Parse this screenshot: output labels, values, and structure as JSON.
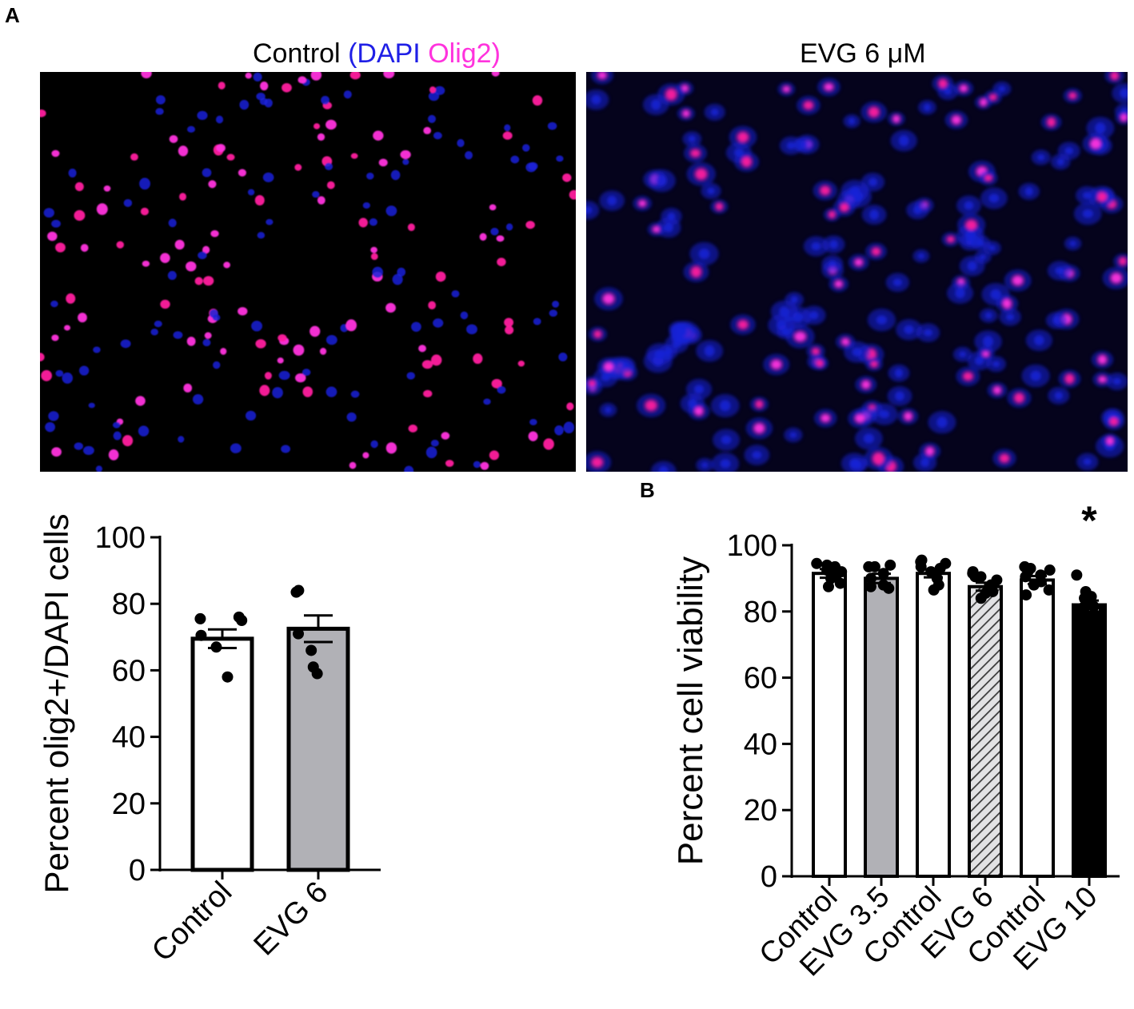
{
  "panels": {
    "a_label": "A",
    "b_label": "B"
  },
  "micrographs": {
    "left_title_prefix": "Control",
    "left_title_dapi": "(DAPI",
    "left_title_olig2": "Olig2)",
    "right_title": "EVG 6 μM",
    "colors": {
      "dapi": "#1f1fe6",
      "olig2": "#ff33dd",
      "nucleus_pink": "#ff1f9e",
      "nucleus_blue": "#1a22d8"
    }
  },
  "chart_data": [
    {
      "type": "bar",
      "panel": "A",
      "categories": [
        "Control",
        "EVG 6"
      ],
      "values": [
        69.5,
        72.5
      ],
      "sem": [
        2.8,
        4.0
      ],
      "points": [
        [
          75.5,
          75,
          76,
          70.5,
          67,
          58
        ],
        [
          83.5,
          84,
          71,
          66,
          61,
          59
        ]
      ],
      "fill": [
        "#ffffff",
        "#b1b1b6"
      ],
      "ylabel": "Percent olig2+/DAPI cells",
      "ylim": [
        0,
        100
      ],
      "yticks": [
        0,
        20,
        40,
        60,
        80,
        100
      ]
    },
    {
      "type": "bar",
      "panel": "B",
      "categories": [
        "Control",
        "EVG 3.5",
        "Control",
        "EVG 6",
        "Control",
        "EVG 10"
      ],
      "values": [
        91.5,
        90.0,
        91.5,
        87.5,
        89.5,
        82.0
      ],
      "sem": [
        1.3,
        1.4,
        1.2,
        1.2,
        1.2,
        1.3
      ],
      "points": [
        [
          94.5,
          93.5,
          92.5,
          91,
          90,
          88.5,
          87.5,
          92,
          94
        ],
        [
          93.5,
          94,
          91.5,
          90,
          88,
          87,
          87.5,
          93.5
        ],
        [
          95,
          94.5,
          93,
          92,
          91,
          90,
          88,
          86.5,
          93.5,
          95.5
        ],
        [
          91.5,
          90.5,
          89.5,
          88,
          87,
          85.5,
          84,
          86,
          90.5,
          92
        ],
        [
          93.5,
          93,
          92,
          90.5,
          89,
          88,
          86.5,
          85,
          91,
          92.5
        ],
        [
          91,
          86,
          84,
          82,
          81.5,
          81,
          84.5,
          81.5
        ]
      ],
      "fill": [
        "#ffffff",
        "#b1b1b6",
        "#ffffff",
        "hatch",
        "#ffffff",
        "#000000"
      ],
      "ylabel": "Percent cell viability",
      "ylim": [
        0,
        100
      ],
      "yticks": [
        0,
        20,
        40,
        60,
        80,
        100
      ],
      "annotations": [
        {
          "category_index": 5,
          "text": "*"
        }
      ]
    }
  ]
}
